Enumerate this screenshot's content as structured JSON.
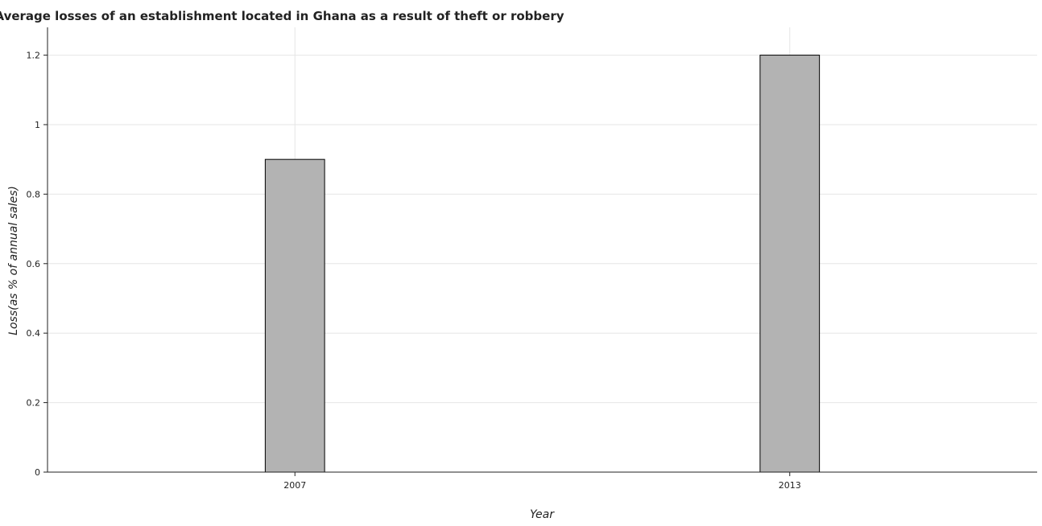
{
  "chart_data": {
    "type": "bar",
    "title": "Average losses of an establishment located in Ghana as a result of theft or robbery",
    "xlabel": "Year",
    "ylabel": "Loss(as % of annual sales)",
    "categories": [
      "2007",
      "2013"
    ],
    "values": [
      0.9,
      1.2
    ],
    "ylim": [
      0,
      1.28
    ],
    "yticks": [
      0,
      0.2,
      0.4,
      0.6,
      0.8,
      1,
      1.2
    ],
    "ytick_labels": [
      "0",
      "0.2",
      "0.4",
      "0.6",
      "0.8",
      "1",
      "1.2"
    ],
    "grid": true,
    "legend": "none",
    "bar_color": "#b3b3b3",
    "bar_edge_color": "#000000"
  }
}
